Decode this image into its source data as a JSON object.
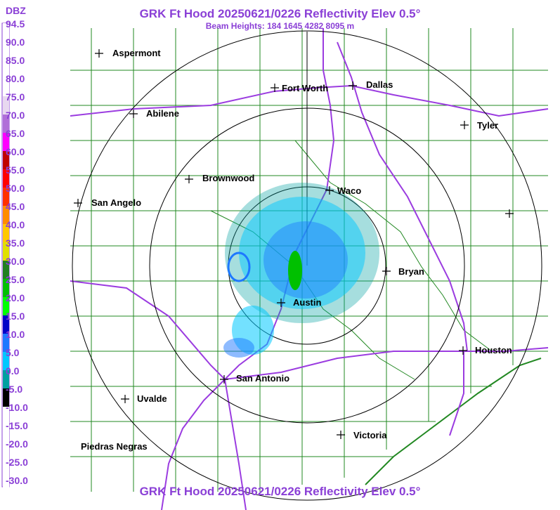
{
  "title": "GRK Ft Hood 20250621/0226 Reflectivity Elev 0.5°",
  "subtitle": "Beam Heights: 184 1645 4282 8095 m",
  "legend": {
    "unit": "DBZ",
    "labels": [
      "94.5",
      "90.0",
      "85.0",
      "80.0",
      "75.0",
      "70.0",
      "65.0",
      "60.0",
      "55.0",
      "50.0",
      "45.0",
      "40.0",
      "35.0",
      "30.0",
      "25.0",
      "20.0",
      "15.0",
      "10.0",
      "5.0",
      "0.0",
      "-5.0",
      "-10.0",
      "-15.0",
      "-20.0",
      "-25.0",
      "-30.0"
    ],
    "colors": [
      "#ffffff",
      "#ffffff",
      "#ffffff",
      "#ffffff",
      "#e8d8f0",
      "#b06fd8",
      "#ff00ff",
      "#c00000",
      "#ff0000",
      "#ff3000",
      "#ff8c00",
      "#ffc800",
      "#e0e000",
      "#208020",
      "#00c000",
      "#00ff00",
      "#0000c8",
      "#1e78ff",
      "#00c8ff",
      "#00a0a0",
      "#000000",
      "#ffffff",
      "#ffffff",
      "#ffffff",
      "#ffffff",
      "#ffffff"
    ]
  },
  "cities": [
    {
      "name": "Aspermont",
      "icon": "plus-marker"
    },
    {
      "name": "Fort Worth",
      "icon": "plus-marker"
    },
    {
      "name": "Dallas",
      "icon": "plus-marker"
    },
    {
      "name": "Abilene",
      "icon": "plus-marker"
    },
    {
      "name": "Tyler",
      "icon": "plus-marker"
    },
    {
      "name": "Brownwood",
      "icon": "plus-marker"
    },
    {
      "name": "Waco",
      "icon": "plus-marker"
    },
    {
      "name": "San Angelo",
      "icon": "plus-marker"
    },
    {
      "name": "Bryan",
      "icon": "plus-marker"
    },
    {
      "name": "Austin",
      "icon": "plus-marker"
    },
    {
      "name": "Houston",
      "icon": "plus-marker"
    },
    {
      "name": "San Antonio",
      "icon": "plus-marker"
    },
    {
      "name": "Uvalde",
      "icon": "plus-marker"
    },
    {
      "name": "Piedras Negras",
      "icon": "none"
    },
    {
      "name": "Victoria",
      "icon": "plus-marker"
    }
  ],
  "colors": {
    "title": "#8a3fd6",
    "county_lines": "#228822",
    "highways": "#9b3ce0",
    "range_rings": "#000000"
  }
}
